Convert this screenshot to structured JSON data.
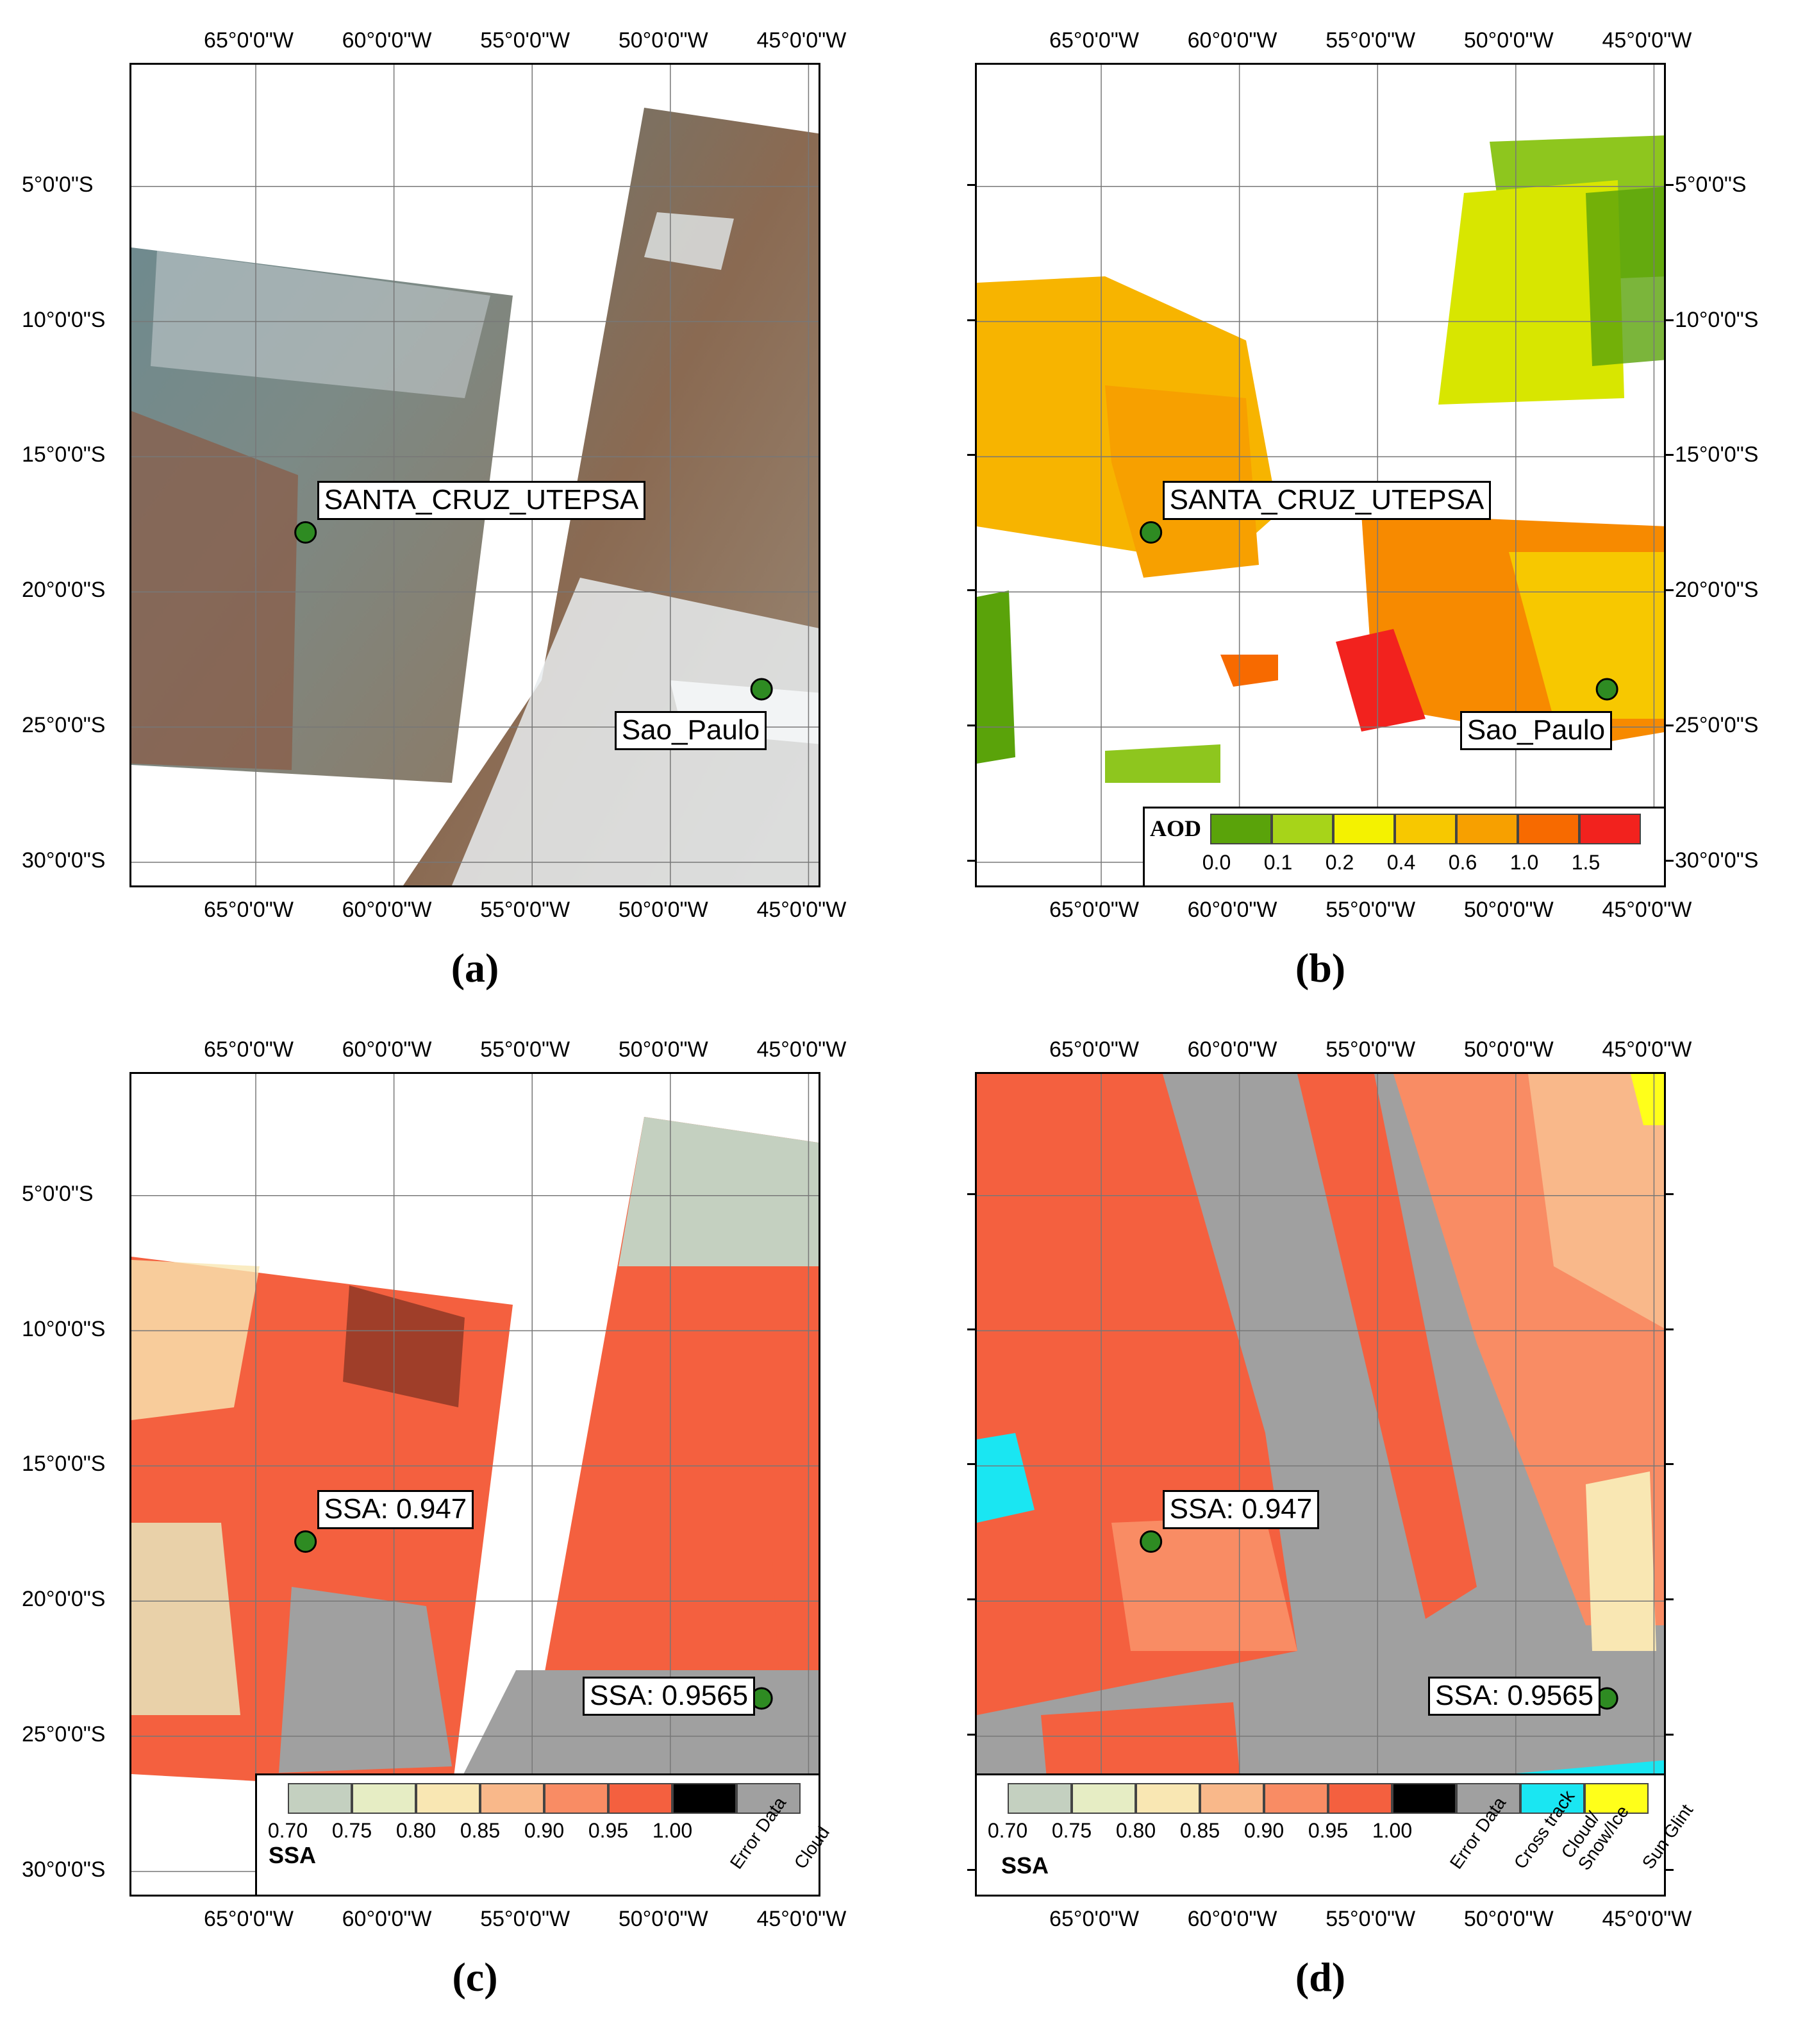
{
  "lon_ticks": [
    "65°0'0\"W",
    "60°0'0\"W",
    "55°0'0\"W",
    "50°0'0\"W",
    "45°0'0\"W"
  ],
  "lat_ticks": [
    "5°0'0\"S",
    "10°0'0\"S",
    "15°0'0\"S",
    "20°0'0\"S",
    "25°0'0\"S",
    "30°0'0\"S"
  ],
  "panels": {
    "a": {
      "caption": "(a)",
      "sites": [
        {
          "label": "SANTA_CRUZ_UTEPSA",
          "lon": -63.2,
          "lat": -17.8
        },
        {
          "label": "Sao_Paulo",
          "lon": -46.7,
          "lat": -23.6
        }
      ]
    },
    "b": {
      "caption": "(b)",
      "sites": [
        {
          "label": "SANTA_CRUZ_UTEPSA",
          "lon": -63.2,
          "lat": -17.8
        },
        {
          "label": "Sao_Paulo",
          "lon": -46.7,
          "lat": -23.6
        }
      ],
      "legend": {
        "title": "AOD",
        "colors": [
          "#5aa30a",
          "#a7d419",
          "#f4f200",
          "#f7c800",
          "#f7a000",
          "#f76a00",
          "#f2221e"
        ],
        "ticks": [
          "0.0",
          "0.1",
          "0.2",
          "0.4",
          "0.6",
          "1.0",
          "1.5"
        ]
      }
    },
    "c": {
      "caption": "(c)",
      "sites": [
        {
          "label": "SSA: 0.947",
          "lon": -63.2,
          "lat": -17.8
        },
        {
          "label": "SSA: 0.9565",
          "lon": -46.7,
          "lat": -23.6
        }
      ],
      "legend": {
        "title": "SSA",
        "colors": [
          "#c4d0c0",
          "#e6edc4",
          "#f9e7b3",
          "#f9b88a",
          "#f98c64",
          "#f4603f",
          "#000000",
          "#a0a0a0"
        ],
        "ticks": [
          "0.70",
          "0.75",
          "0.80",
          "0.85",
          "0.90",
          "0.95",
          "1.00"
        ],
        "categories": [
          "Error Data",
          "Cloud"
        ]
      }
    },
    "d": {
      "caption": "(d)",
      "sites": [
        {
          "label": "SSA: 0.947",
          "lon": -63.2,
          "lat": -17.8
        },
        {
          "label": "SSA: 0.9565",
          "lon": -46.7,
          "lat": -23.6
        }
      ],
      "legend": {
        "title": "SSA",
        "colors": [
          "#c4d0c0",
          "#e6edc4",
          "#f9e7b3",
          "#f9b88a",
          "#f98c64",
          "#f4603f",
          "#000000",
          "#a0a0a0",
          "#1ae6f2",
          "#ffff1a"
        ],
        "ticks": [
          "0.70",
          "0.75",
          "0.80",
          "0.85",
          "0.90",
          "0.95",
          "1.00"
        ],
        "categories": [
          "Error Data",
          "Cross track",
          "Cloud/\nSnow/Ice",
          "Sun Glint"
        ]
      }
    }
  },
  "colors": {
    "site_marker": "#2e8b22",
    "rgb_land": "#7a6a58",
    "rgb_haze": "#8a9aa4",
    "rgb_cloud": "#e8ecef",
    "ssa_gray": "#a0a0a0",
    "ssa_red": "#f4603f",
    "ssa_cyan": "#1ae6f2"
  }
}
